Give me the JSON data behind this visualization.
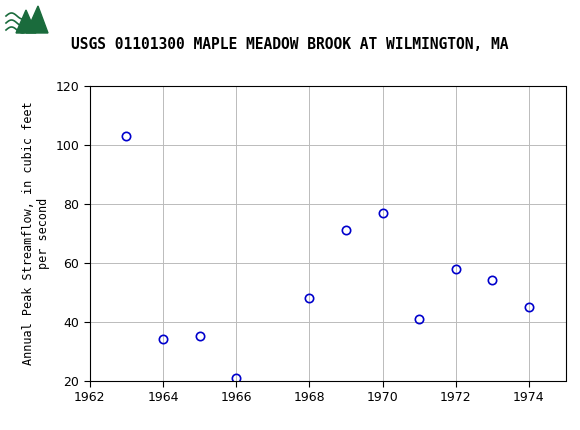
{
  "title": "USGS 01101300 MAPLE MEADOW BROOK AT WILMINGTON, MA",
  "ylabel_line1": "Annual Peak Streamflow, in cubic feet",
  "ylabel_line2": "per second",
  "years": [
    1963,
    1964,
    1965,
    1966,
    1968,
    1969,
    1970,
    1971,
    1972,
    1973,
    1974
  ],
  "values": [
    103,
    34,
    35,
    21,
    48,
    71,
    77,
    41,
    58,
    54,
    45
  ],
  "xlim": [
    1962,
    1975
  ],
  "ylim": [
    20,
    120
  ],
  "xticks": [
    1962,
    1964,
    1966,
    1968,
    1970,
    1972,
    1974
  ],
  "yticks": [
    20,
    40,
    60,
    80,
    100,
    120
  ],
  "marker_color": "#0000CC",
  "marker_size": 6,
  "marker_linewidth": 1.2,
  "grid_color": "#BBBBBB",
  "bg_color": "#FFFFFF",
  "header_bg": "#1A6B3C",
  "title_fontsize": 10.5,
  "axis_label_fontsize": 8.5,
  "tick_fontsize": 9
}
